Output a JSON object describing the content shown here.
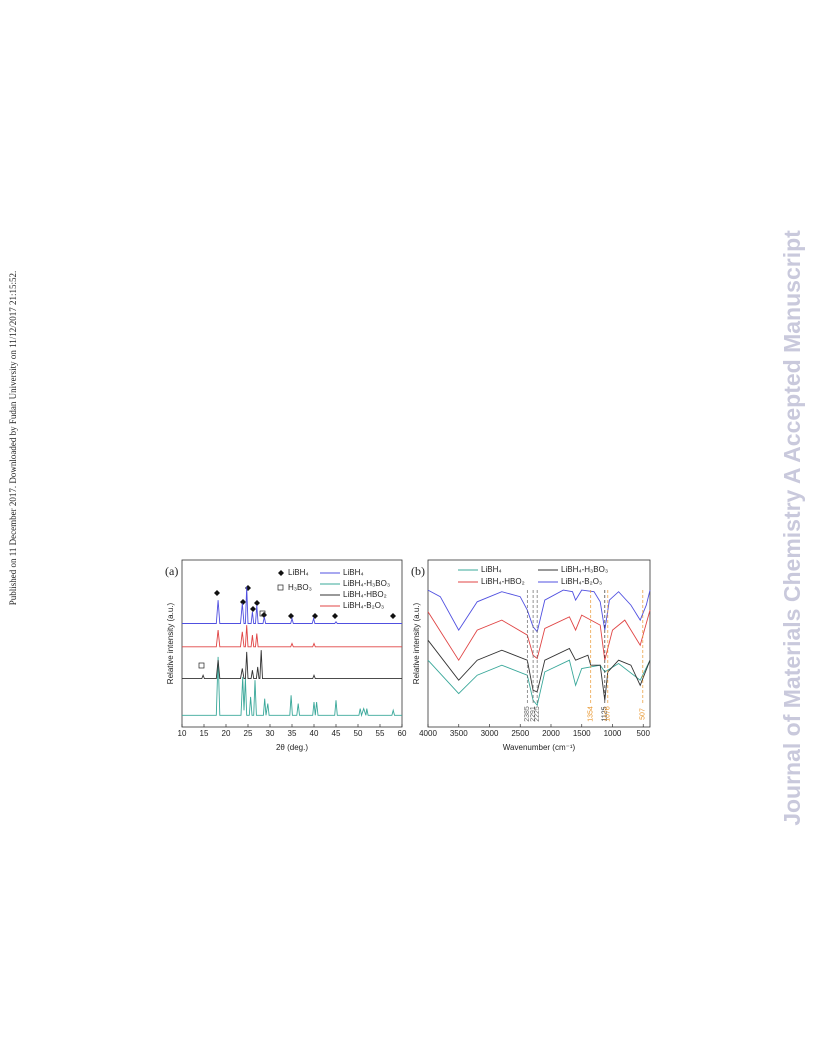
{
  "side_note": "Published on 11 December 2017. Downloaded by Fudan University on 11/12/2017 21:15:52.",
  "journal_banner": "Journal of Materials Chemistry A Accepted Manuscript",
  "chart_data": [
    {
      "type": "line",
      "panel_label": "(a)",
      "x_label": "2θ (deg.)",
      "y_label": "Relative intensity (a.u.)",
      "xlim": [
        10,
        60
      ],
      "xticks": [
        10,
        15,
        20,
        25,
        30,
        35,
        40,
        45,
        50,
        55,
        60
      ],
      "ylim": [
        0,
        100
      ],
      "marker_legend": [
        "LiBH₄",
        "H₃BO₃"
      ],
      "series": [
        {
          "name": "LiBH₄",
          "color": "#5050e0",
          "x": [
            10,
            17.8,
            18.2,
            18.6,
            23.3,
            23.7,
            24.1,
            24.4,
            24.7,
            25.0,
            25.7,
            26.0,
            26.3,
            26.7,
            27.0,
            27.3,
            28.4,
            28.7,
            29.0,
            34.7,
            35.0,
            35.3,
            39.6,
            39.9,
            40.2,
            44.7,
            45.0,
            45.3,
            60
          ],
          "values": [
            62,
            62,
            76,
            62,
            62,
            74,
            62,
            62,
            84,
            62,
            62,
            69,
            62,
            62,
            73,
            62,
            62,
            66,
            62,
            62,
            65,
            62,
            62,
            65,
            62,
            62,
            63,
            62,
            62
          ]
        },
        {
          "name": "LiBH₄-H₃BO₃",
          "color": "#3aa89a",
          "x": [
            10,
            17.8,
            18.2,
            18.6,
            23.4,
            23.8,
            24.1,
            24.4,
            24.7,
            25.3,
            25.6,
            25.9,
            26.3,
            26.6,
            26.9,
            28.5,
            28.8,
            29.1,
            29.5,
            29.8,
            34.5,
            34.8,
            35.1,
            36.1,
            36.4,
            36.7,
            39.7,
            40.0,
            40.3,
            40.6,
            40.9,
            44.7,
            45.0,
            45.3,
            50.2,
            50.5,
            50.8,
            51.3,
            51.8,
            52.0,
            52.3,
            57.7,
            58.0,
            58.3,
            60
          ],
          "values": [
            7,
            7,
            42,
            7,
            7,
            30,
            10,
            29,
            7,
            7,
            18,
            7,
            7,
            28,
            7,
            7,
            17,
            7,
            14,
            7,
            7,
            19,
            7,
            7,
            14,
            7,
            7,
            15,
            7,
            15,
            7,
            7,
            16,
            7,
            7,
            11,
            7,
            11,
            7,
            11,
            7,
            7,
            10,
            7,
            7
          ]
        },
        {
          "name": "LiBH₄-HBO₂",
          "color": "#333333",
          "x": [
            10,
            14.5,
            14.8,
            15.1,
            17.8,
            18.2,
            18.6,
            23.3,
            23.7,
            24.1,
            24.4,
            24.7,
            25.0,
            25.7,
            26.0,
            26.3,
            26.9,
            27.2,
            27.5,
            27.7,
            28.0,
            28.3,
            39.7,
            40.0,
            40.3,
            60
          ],
          "values": [
            29,
            29,
            31,
            29,
            29,
            40,
            29,
            29,
            35,
            29,
            29,
            45,
            29,
            29,
            34,
            29,
            29,
            36,
            29,
            29,
            46,
            29,
            29,
            31,
            29,
            29
          ]
        },
        {
          "name": "LiBH₄-B₂O₃",
          "color": "#e04545",
          "x": [
            10,
            17.8,
            18.2,
            18.6,
            23.3,
            23.7,
            24.1,
            24.4,
            24.7,
            25.0,
            25.7,
            26.0,
            26.3,
            26.7,
            27.0,
            27.3,
            34.7,
            35.0,
            35.3,
            39.7,
            40.0,
            40.3,
            60
          ],
          "values": [
            48,
            48,
            58,
            48,
            48,
            57,
            48,
            48,
            61,
            48,
            48,
            55,
            48,
            48,
            56,
            48,
            48,
            50,
            48,
            48,
            50,
            48,
            48
          ]
        }
      ]
    },
    {
      "type": "line",
      "panel_label": "(b)",
      "x_label": "Wavenumber (cm⁻¹)",
      "y_label": "Relative intensity (a.u.)",
      "xlim": [
        4000,
        390
      ],
      "xticks": [
        4000,
        3500,
        3000,
        2500,
        2000,
        1500,
        1000,
        500
      ],
      "ylim": [
        0,
        100
      ],
      "legend_columns": 2,
      "series": [
        {
          "name": "LiBH₄",
          "color": "#3aa89a",
          "x": [
            4000,
            3500,
            3200,
            2800,
            2385,
            2291,
            2225,
            2100,
            1700,
            1600,
            1500,
            1200,
            1125,
            900,
            550,
            390
          ],
          "values": [
            40,
            20,
            31,
            37,
            31,
            16,
            13,
            33,
            40,
            25,
            35,
            37,
            33,
            38,
            28,
            40
          ]
        },
        {
          "name": "LiBH₄-H₃BO₃",
          "color": "#333333",
          "x": [
            4000,
            3500,
            3200,
            2800,
            2385,
            2291,
            2225,
            2100,
            1700,
            1600,
            1400,
            1354,
            1200,
            1125,
            1076,
            900,
            700,
            550,
            390
          ],
          "values": [
            52,
            28,
            40,
            46,
            40,
            22,
            21,
            40,
            47,
            40,
            43,
            37,
            37,
            16,
            33,
            40,
            37,
            25,
            40
          ]
        },
        {
          "name": "LiBH₄-HBO₂",
          "color": "#e04545",
          "x": [
            4000,
            3500,
            3200,
            2800,
            2385,
            2291,
            2225,
            2100,
            1700,
            1600,
            1500,
            1200,
            1125,
            1000,
            800,
            550,
            390
          ],
          "values": [
            69,
            40,
            58,
            64,
            55,
            43,
            41,
            59,
            66,
            58,
            67,
            61,
            40,
            58,
            64,
            49,
            70
          ]
        },
        {
          "name": "LiBH₄-B₂O₃",
          "color": "#5050e0",
          "x": [
            4000,
            3800,
            3500,
            3200,
            2800,
            2500,
            2385,
            2291,
            2225,
            2100,
            1800,
            1650,
            1600,
            1500,
            1300,
            1200,
            1125,
            1050,
            900,
            700,
            550,
            450,
            390
          ],
          "values": [
            82,
            78,
            58,
            75,
            81,
            78,
            70,
            60,
            57,
            76,
            82,
            81,
            76,
            82,
            81,
            75,
            58,
            76,
            81,
            73,
            64,
            73,
            82
          ]
        }
      ],
      "annotations": [
        {
          "x": 2385,
          "color": "#666666"
        },
        {
          "x": 2291,
          "color": "#666666"
        },
        {
          "x": 2225,
          "color": "#666666"
        },
        {
          "x": 1354,
          "color": "#e8962e"
        },
        {
          "x": 1125,
          "color": "#333333"
        },
        {
          "x": 1076,
          "color": "#e8962e"
        },
        {
          "x": 507,
          "color": "#e8962e"
        }
      ]
    }
  ]
}
